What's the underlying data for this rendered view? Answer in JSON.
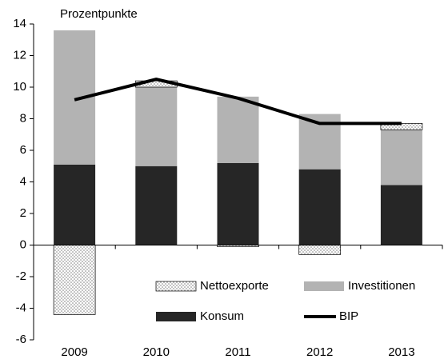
{
  "chart_data": {
    "type": "stacked-bar-line",
    "y_label": "Prozentpunkte",
    "categories": [
      "2009",
      "2010",
      "2011",
      "2012",
      "2013"
    ],
    "ylim": [
      -6,
      14
    ],
    "yticks": [
      -6,
      -4,
      -2,
      0,
      2,
      4,
      6,
      8,
      10,
      12,
      14
    ],
    "series": [
      {
        "name": "Konsum",
        "color": "#262626",
        "kind": "bar",
        "values": [
          5.1,
          5.0,
          5.2,
          4.8,
          3.8
        ]
      },
      {
        "name": "Investitionen",
        "color": "#b3b3b3",
        "kind": "bar",
        "values": [
          8.5,
          5.0,
          4.2,
          3.5,
          3.5
        ]
      },
      {
        "name": "Nettoexporte",
        "color": "#7f7f7f",
        "kind": "bar",
        "pattern": "dots",
        "values": [
          -4.4,
          0.4,
          -0.1,
          -0.6,
          0.4
        ]
      },
      {
        "name": "BIP",
        "color": "#000000",
        "kind": "line",
        "values": [
          9.2,
          10.5,
          9.3,
          7.7,
          7.7
        ]
      }
    ],
    "legend_order": [
      2,
      1,
      0,
      3
    ]
  }
}
